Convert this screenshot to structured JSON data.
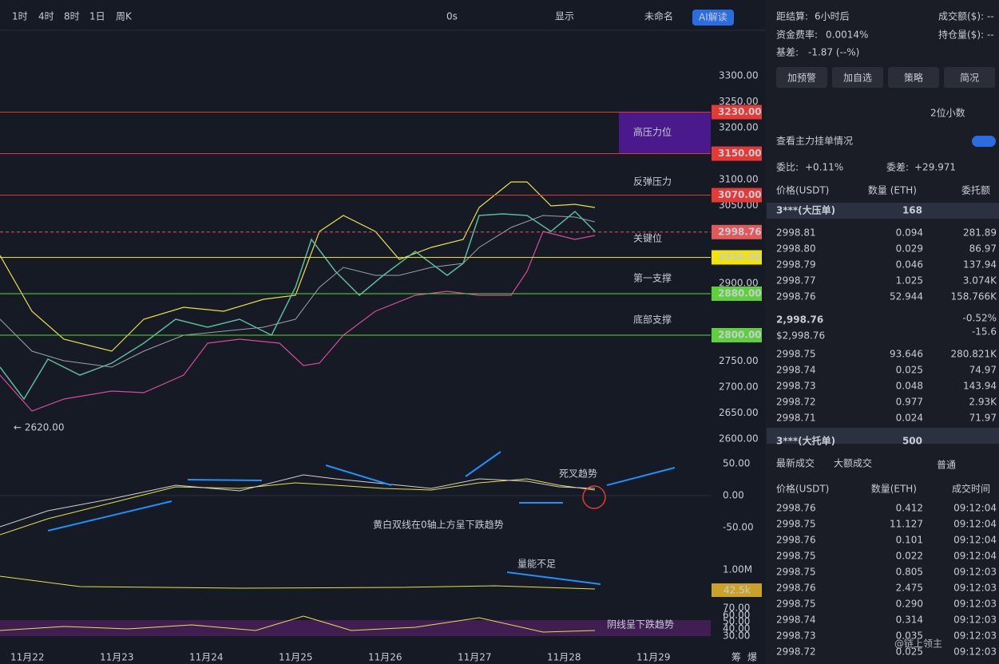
{
  "toolbar": {
    "intervals": [
      "1时",
      "4时",
      "8时",
      "1日",
      "周K"
    ],
    "timer": "0s",
    "display": "显示",
    "layout_name": "未命名",
    "ai": "AI解读"
  },
  "chart": {
    "price_ticks": [
      "3300.00",
      "3250.00",
      "3200.00",
      "3100.00",
      "3050.00",
      "2900.00",
      "2750.00",
      "2700.00",
      "2650.00",
      "2600.00"
    ],
    "levels": [
      {
        "price": "3230.00",
        "color": "#e53935"
      },
      {
        "price": "3150.00",
        "color": "#e53935"
      },
      {
        "price": "3070.00",
        "color": "#e53935"
      },
      {
        "price": "2998.76",
        "color": "#e05a5a"
      },
      {
        "price": "2950.00",
        "color": "#f2e600"
      },
      {
        "price": "2880.00",
        "color": "#5ed13a"
      },
      {
        "price": "2800.00",
        "color": "#5ed13a"
      }
    ],
    "zone_labels": [
      "高压力位",
      "反弹压力",
      "关键位",
      "第一支撑",
      "底部支撑"
    ],
    "low_label": "← 2620.00",
    "macd_ticks": [
      "50.00",
      "0.00",
      "-50.00"
    ],
    "macd_notes": [
      "死叉趋势",
      "黄白双线在0轴上方呈下跌趋势"
    ],
    "volume_tick": "1.00M",
    "volume_badge": "42.5k",
    "volume_note": "量能不足",
    "rsi_ticks": [
      "70.00",
      "60.00",
      "50.00",
      "40.00",
      "30.00"
    ],
    "rsi_note": "阴线呈下跌趋势",
    "dates": [
      "11月22",
      "11月23",
      "11月24",
      "11月25",
      "11月26",
      "11月27",
      "11月28",
      "11月29"
    ],
    "corner": [
      "筹",
      "爆"
    ]
  },
  "panel": {
    "info": [
      [
        "距结算:",
        "6小时后",
        "成交额($):",
        "--"
      ],
      [
        "资金费率:",
        "0.0014%",
        "持仓量($):",
        "--"
      ]
    ],
    "basis": [
      "基差:",
      "-1.87 (--%)"
    ],
    "buttons": [
      "加预警",
      "加自选",
      "策略",
      "简况"
    ],
    "decimals": "2位小数",
    "main_orders": "查看主力挂单情况",
    "ratio": [
      "委比:",
      "+0.11%",
      "委差:",
      "+29.971"
    ],
    "book_headers": [
      "价格(USDT)",
      "数量 (ETH)",
      "委托额"
    ],
    "big_ask": [
      "3***(大压单)",
      "168"
    ],
    "asks": [
      [
        "2998.81",
        "0.094",
        "281.89"
      ],
      [
        "2998.80",
        "0.029",
        "86.97"
      ],
      [
        "2998.79",
        "0.046",
        "137.94"
      ],
      [
        "2998.77",
        "1.025",
        "3.074K"
      ],
      [
        "2998.76",
        "52.944",
        "158.766K"
      ]
    ],
    "mid": [
      "2,998.76",
      "$2,998.76",
      "-0.52%",
      "-15.6"
    ],
    "bids": [
      [
        "2998.75",
        "93.646",
        "280.821K"
      ],
      [
        "2998.74",
        "0.025",
        "74.97"
      ],
      [
        "2998.73",
        "0.048",
        "143.94"
      ],
      [
        "2998.72",
        "0.977",
        "2.93K"
      ],
      [
        "2998.71",
        "0.024",
        "71.97"
      ]
    ],
    "big_bid": [
      "3***(大托单)",
      "500"
    ],
    "tabs": [
      "最新成交",
      "大额成交",
      "普通"
    ],
    "trade_headers": [
      "价格(USDT)",
      "数量(ETH)",
      "成交时间"
    ],
    "trades": [
      {
        "cells": [
          "2998.76",
          "0.412",
          "09:12:04"
        ],
        "side": "buy"
      },
      {
        "cells": [
          "2998.75",
          "11.127",
          "09:12:04"
        ],
        "side": "sell"
      },
      {
        "cells": [
          "2998.76",
          "0.101",
          "09:12:04"
        ],
        "side": "buy"
      },
      {
        "cells": [
          "2998.75",
          "0.022",
          "09:12:04"
        ],
        "side": "sell"
      },
      {
        "cells": [
          "2998.75",
          "0.805",
          "09:12:03"
        ],
        "side": "sell"
      },
      {
        "cells": [
          "2998.76",
          "2.475",
          "09:12:03"
        ],
        "side": "buy"
      },
      {
        "cells": [
          "2998.75",
          "0.290",
          "09:12:03"
        ],
        "side": "buy"
      },
      {
        "cells": [
          "2998.74",
          "0.314",
          "09:12:03"
        ],
        "side": "buy"
      },
      {
        "cells": [
          "2998.73",
          "0.035",
          "09:12:03"
        ],
        "side": "buy"
      },
      {
        "cells": [
          "2998.72",
          "0.025",
          "09:12:03"
        ],
        "side": "buy"
      }
    ],
    "watermark": "@链上领主"
  }
}
